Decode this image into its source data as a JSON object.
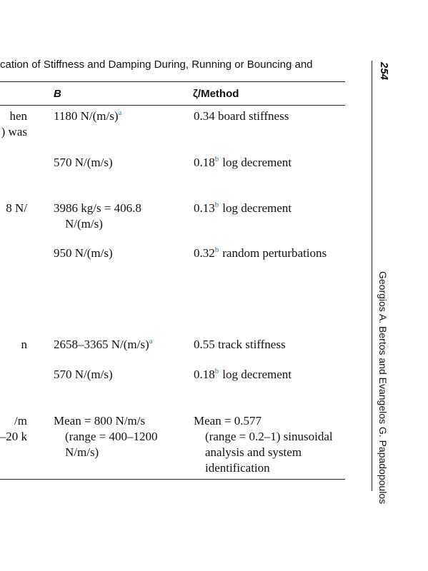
{
  "header": {
    "title": "cation of Stiffness and Damping During, Running or Bouncing and",
    "page_number": "254",
    "running_head": "Georgios A. Bertos and Evangelos G. Papadopoulos"
  },
  "table": {
    "columns": [
      "B",
      "ζ/Method"
    ],
    "rows": [
      {
        "left": [
          "hen",
          ") was"
        ],
        "b": {
          "lines": [
            "1180 N/(m/s)"
          ],
          "sup": "a"
        },
        "method": {
          "lines": [
            "0.34 board stiffness"
          ]
        }
      },
      {
        "left": [],
        "b": {
          "lines": [
            "570 N/(m/s)"
          ]
        },
        "method": {
          "lines": [
            "0.18"
          ],
          "sup": "b",
          "after": "log decrement"
        }
      },
      {
        "left": [
          "8 N/"
        ],
        "b": {
          "lines": [
            "3986 kg/s = 406.8",
            "N/(m/s)"
          ]
        },
        "method": {
          "lines": [
            "0.13"
          ],
          "sup": "b",
          "after": "log decrement"
        }
      },
      {
        "left": [],
        "b": {
          "lines": [
            "950 N/(m/s)"
          ]
        },
        "method": {
          "lines": [
            "0.32"
          ],
          "sup": "b",
          "after": "random perturbations"
        }
      },
      {
        "left": [
          "n"
        ],
        "b": {
          "lines": [
            "2658–3365 N/(m/s)"
          ],
          "sup": "a"
        },
        "method": {
          "lines": [
            "0.55 track stiffness"
          ]
        }
      },
      {
        "left": [],
        "b": {
          "lines": [
            "570 N/(m/s)"
          ]
        },
        "method": {
          "lines": [
            "0.18"
          ],
          "sup": "b",
          "after": "log decrement"
        }
      },
      {
        "left": [
          "/m",
          "–20 k"
        ],
        "b": {
          "lines": [
            "Mean = 800 N/m/s",
            "(range = 400–1200",
            "N/m/s)"
          ]
        },
        "method": {
          "lines": [
            "Mean = 0.577",
            "(range = 0.2–1) sinusoidal",
            "analysis and system",
            "identification"
          ]
        }
      }
    ]
  }
}
